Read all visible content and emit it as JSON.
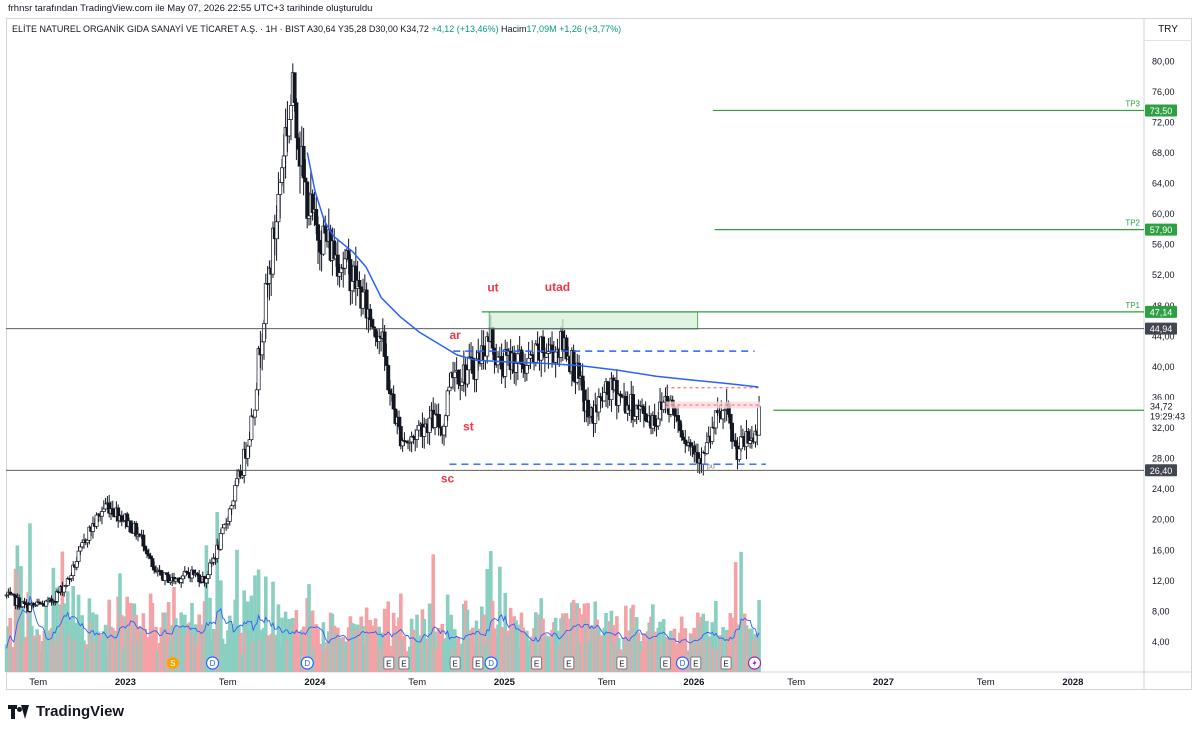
{
  "header": {
    "note": "frhnsr tarafından TradingView.com ile May 07, 2026 22:55 UTC+3 tarihinde oluşturuldu"
  },
  "legend": {
    "symbol": "ELİTE NATUREL ORGANİK GIDA SANAYİ VE TİCARET A.Ş. · 1H · BIST",
    "open": "A30,64",
    "high": "Y35,28",
    "low": "D30,00",
    "close": "K34,72",
    "change": "+4,12 (+13,46%)",
    "volume_label": "Hacim",
    "volume": "17,09M",
    "volume_change": "+1,26 (+3,77%)"
  },
  "currency": "TRY",
  "brand": {
    "name": "TradingView"
  },
  "colors": {
    "up": "#089981",
    "down": "#f23645",
    "ma": "#2962ff",
    "tp": "#2ea043",
    "zone_fill": "#d7f0d9",
    "pink_fill": "#fcd9df",
    "label_red": "#f23645",
    "vol_up": "#89cfc2",
    "vol_down": "#f4a2a6",
    "gray_line": "#434651",
    "marker_dark": "#131722"
  },
  "chart_data": {
    "type": "candlestick",
    "ylim": [
      0,
      84
    ],
    "yticks": [
      "80,00",
      "76,00",
      "72,00",
      "68,00",
      "64,00",
      "60,00",
      "56,00",
      "52,00",
      "48,00",
      "44,00",
      "40,00",
      "36,00",
      "32,00",
      "28,00",
      "24,00",
      "20,00",
      "16,00",
      "12,00",
      "8,00",
      "4,00"
    ],
    "xlim": [
      2022.37,
      2028.37
    ],
    "xticks": [
      {
        "t": 2022.54,
        "label": "Tem",
        "bold": false
      },
      {
        "t": 2023.0,
        "label": "2023",
        "bold": true
      },
      {
        "t": 2023.54,
        "label": "Tem",
        "bold": false
      },
      {
        "t": 2024.0,
        "label": "2024",
        "bold": true
      },
      {
        "t": 2024.54,
        "label": "Tem",
        "bold": false
      },
      {
        "t": 2025.0,
        "label": "2025",
        "bold": true
      },
      {
        "t": 2025.54,
        "label": "Tem",
        "bold": false
      },
      {
        "t": 2026.0,
        "label": "2026",
        "bold": true
      },
      {
        "t": 2026.54,
        "label": "Tem",
        "bold": false
      },
      {
        "t": 2027.0,
        "label": "2027",
        "bold": true
      },
      {
        "t": 2027.54,
        "label": "Tem",
        "bold": false
      },
      {
        "t": 2028.0,
        "label": "2028",
        "bold": true
      }
    ],
    "price_path": [
      [
        2022.37,
        10
      ],
      [
        2022.48,
        8.5
      ],
      [
        2022.6,
        9
      ],
      [
        2022.7,
        12
      ],
      [
        2022.8,
        18
      ],
      [
        2022.9,
        22
      ],
      [
        2023.0,
        20
      ],
      [
        2023.1,
        17
      ],
      [
        2023.15,
        13
      ],
      [
        2023.25,
        12
      ],
      [
        2023.35,
        13
      ],
      [
        2023.42,
        12
      ],
      [
        2023.5,
        17
      ],
      [
        2023.56,
        22
      ],
      [
        2023.62,
        27
      ],
      [
        2023.68,
        35
      ],
      [
        2023.72,
        45
      ],
      [
        2023.76,
        52
      ],
      [
        2023.8,
        60
      ],
      [
        2023.84,
        70
      ],
      [
        2023.89,
        76
      ],
      [
        2023.94,
        64
      ],
      [
        2024.0,
        58
      ],
      [
        2024.05,
        57
      ],
      [
        2024.1,
        55
      ],
      [
        2024.2,
        52
      ],
      [
        2024.28,
        47
      ],
      [
        2024.35,
        44
      ],
      [
        2024.4,
        36
      ],
      [
        2024.45,
        31
      ],
      [
        2024.5,
        30
      ],
      [
        2024.55,
        32
      ],
      [
        2024.62,
        33
      ],
      [
        2024.68,
        32
      ],
      [
        2024.72,
        40
      ],
      [
        2024.78,
        39
      ],
      [
        2024.84,
        40
      ],
      [
        2024.93,
        44
      ],
      [
        2024.97,
        40
      ],
      [
        2025.05,
        41
      ],
      [
        2025.12,
        40
      ],
      [
        2025.2,
        42
      ],
      [
        2025.25,
        42
      ],
      [
        2025.32,
        43
      ],
      [
        2025.38,
        39
      ],
      [
        2025.45,
        33
      ],
      [
        2025.52,
        36
      ],
      [
        2025.58,
        37
      ],
      [
        2025.65,
        35
      ],
      [
        2025.72,
        34
      ],
      [
        2025.8,
        33
      ],
      [
        2025.85,
        36
      ],
      [
        2025.9,
        34
      ],
      [
        2025.97,
        30
      ],
      [
        2026.05,
        28
      ],
      [
        2026.12,
        33
      ],
      [
        2026.17,
        34
      ],
      [
        2026.22,
        29
      ],
      [
        2026.27,
        30
      ],
      [
        2026.33,
        31
      ],
      [
        2026.35,
        34.7
      ]
    ],
    "ma_line": [
      [
        2023.96,
        68
      ],
      [
        2024.0,
        63
      ],
      [
        2024.05,
        59
      ],
      [
        2024.1,
        57
      ],
      [
        2024.15,
        56
      ],
      [
        2024.2,
        55
      ],
      [
        2024.27,
        53
      ],
      [
        2024.35,
        49
      ],
      [
        2024.45,
        46.5
      ],
      [
        2024.55,
        44.5
      ],
      [
        2024.65,
        43
      ],
      [
        2024.75,
        41.5
      ],
      [
        2024.85,
        40.8
      ],
      [
        2025.0,
        40.6
      ],
      [
        2025.2,
        40.4
      ],
      [
        2025.4,
        40.1
      ],
      [
        2025.6,
        39.5
      ],
      [
        2025.8,
        38.7
      ],
      [
        2026.0,
        38.2
      ],
      [
        2026.2,
        37.7
      ],
      [
        2026.34,
        37.3
      ]
    ],
    "horizontal_lines": [
      {
        "name": "TP3",
        "price": 73.5,
        "t_start": 2026.1
      },
      {
        "name": "TP2",
        "price": 57.9,
        "t_start": 2026.11
      },
      {
        "name": "TP1",
        "price": 47.14,
        "t_start": 2024.88
      },
      {
        "name": "current",
        "price": 34.26,
        "t_start": 2026.42
      }
    ],
    "support_resistance": [
      {
        "price": 44.94,
        "label": "44,94"
      },
      {
        "price": 26.4,
        "label": "26,40"
      }
    ],
    "price_labels": [
      {
        "price": 73.5,
        "text": "73,50",
        "kind": "tp",
        "tag": "TP3"
      },
      {
        "price": 57.9,
        "text": "57,90",
        "kind": "tp",
        "tag": "TP2"
      },
      {
        "price": 47.14,
        "text": "47,14",
        "kind": "tp",
        "tag": "TP1"
      },
      {
        "price": 44.94,
        "text": "44,94",
        "kind": "dark",
        "tag": ""
      },
      {
        "price": 34.26,
        "text": "34,26",
        "kind": "tp",
        "tag": ""
      },
      {
        "price": 26.4,
        "text": "26,40",
        "kind": "dark",
        "tag": ""
      }
    ],
    "last_price": {
      "price": 34.72,
      "text": "34,72",
      "countdown": "19:29:43"
    },
    "range_box": {
      "t0": 2024.92,
      "t1": 2026.02,
      "p0": 44.9,
      "p1": 47.1
    },
    "dashed_lines": [
      {
        "price": 42.0,
        "t0": 2024.73,
        "t1": 2026.32
      },
      {
        "price": 27.2,
        "t0": 2024.71,
        "t1": 2026.38
      }
    ],
    "pink_zone": {
      "t0": 2025.85,
      "t1": 2026.35,
      "p0": 34.5,
      "p1": 35.4,
      "dash": 37.2
    },
    "annotations": [
      {
        "text": "ut",
        "t": 2024.94,
        "price": 49.8
      },
      {
        "text": "utad",
        "t": 2025.28,
        "price": 49.9
      },
      {
        "text": "ar",
        "t": 2024.74,
        "price": 43.6
      },
      {
        "text": "st",
        "t": 2024.81,
        "price": 31.6
      },
      {
        "text": "sc",
        "t": 2024.7,
        "price": 24.8
      }
    ],
    "small_label": {
      "text": "pu",
      "t": 2026.09,
      "price": 26.4
    },
    "event_markers": [
      {
        "t": 2023.25,
        "kind": "S"
      },
      {
        "t": 2023.46,
        "kind": "D"
      },
      {
        "t": 2023.96,
        "kind": "D"
      },
      {
        "t": 2024.39,
        "kind": "E"
      },
      {
        "t": 2024.47,
        "kind": "E"
      },
      {
        "t": 2024.74,
        "kind": "E"
      },
      {
        "t": 2024.86,
        "kind": "E"
      },
      {
        "t": 2024.93,
        "kind": "D"
      },
      {
        "t": 2025.17,
        "kind": "E"
      },
      {
        "t": 2025.34,
        "kind": "E"
      },
      {
        "t": 2025.62,
        "kind": "E"
      },
      {
        "t": 2025.85,
        "kind": "E"
      },
      {
        "t": 2025.94,
        "kind": "D"
      },
      {
        "t": 2026.01,
        "kind": "E"
      },
      {
        "t": 2026.17,
        "kind": "E"
      },
      {
        "t": 2026.32,
        "kind": "bolt"
      }
    ]
  }
}
